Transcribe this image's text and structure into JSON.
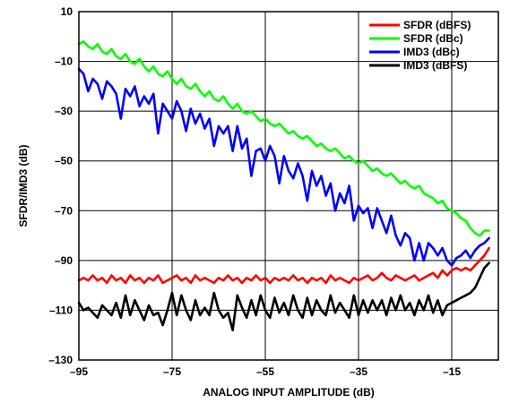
{
  "chart_data": {
    "type": "line",
    "title": "",
    "xlabel": "ANALOG INPUT AMPLITUDE (dB)",
    "ylabel": "SFDR/IMD3 (dB)",
    "xlim": [
      -95,
      -5
    ],
    "ylim": [
      -130,
      10
    ],
    "xticks": [
      -95,
      -75,
      -55,
      -35,
      -15
    ],
    "xtick_labels": [
      "–95",
      "–75",
      "–55",
      "–35",
      "–15"
    ],
    "yticks": [
      10,
      -10,
      -30,
      -50,
      -70,
      -90,
      -110,
      -130
    ],
    "ytick_labels": [
      "10",
      "–10",
      "–30",
      "–50",
      "–70",
      "–90",
      "–110",
      "–130"
    ],
    "grid": true,
    "legend_position": "top-right",
    "series": [
      {
        "name": "SFDR (dBFS)",
        "color": "#ff0000",
        "x": [
          -95,
          -94,
          -93,
          -92,
          -91,
          -90,
          -89,
          -88,
          -87,
          -86,
          -85,
          -84,
          -83,
          -82,
          -81,
          -80,
          -79,
          -78,
          -77,
          -76,
          -75,
          -74,
          -73,
          -72,
          -71,
          -70,
          -69,
          -68,
          -67,
          -66,
          -65,
          -64,
          -63,
          -62,
          -61,
          -60,
          -59,
          -58,
          -57,
          -56,
          -55,
          -54,
          -53,
          -52,
          -51,
          -50,
          -49,
          -48,
          -47,
          -46,
          -45,
          -44,
          -43,
          -42,
          -41,
          -40,
          -39,
          -38,
          -37,
          -36,
          -35,
          -34,
          -33,
          -32,
          -31,
          -30,
          -29,
          -28,
          -27,
          -26,
          -25,
          -24,
          -23,
          -22,
          -21,
          -20,
          -19,
          -18,
          -17,
          -16,
          -15,
          -14,
          -13,
          -12,
          -11,
          -10,
          -9,
          -8,
          -7
        ],
        "y": [
          -98,
          -97,
          -98,
          -96,
          -98,
          -97,
          -99,
          -96,
          -98,
          -97,
          -99,
          -96,
          -98,
          -97,
          -99,
          -97,
          -98,
          -96,
          -99,
          -98,
          -97,
          -96,
          -98,
          -97,
          -99,
          -96,
          -98,
          -97,
          -98,
          -99,
          -97,
          -98,
          -96,
          -98,
          -97,
          -99,
          -97,
          -98,
          -96,
          -98,
          -97,
          -99,
          -97,
          -98,
          -97,
          -98,
          -96,
          -98,
          -97,
          -99,
          -97,
          -98,
          -97,
          -99,
          -96,
          -98,
          -97,
          -98,
          -99,
          -97,
          -98,
          -97,
          -96,
          -98,
          -97,
          -95,
          -97,
          -98,
          -96,
          -97,
          -98,
          -97,
          -96,
          -98,
          -97,
          -96,
          -95,
          -97,
          -94,
          -96,
          -94,
          -93,
          -94,
          -93,
          -94,
          -92,
          -90,
          -88,
          -85
        ]
      },
      {
        "name": "SFDR (dBc)",
        "color": "#00ff00",
        "x": [
          -95,
          -94,
          -93,
          -92,
          -91,
          -90,
          -89,
          -88,
          -87,
          -86,
          -85,
          -84,
          -83,
          -82,
          -81,
          -80,
          -79,
          -78,
          -77,
          -76,
          -75,
          -74,
          -73,
          -72,
          -71,
          -70,
          -69,
          -68,
          -67,
          -66,
          -65,
          -64,
          -63,
          -62,
          -61,
          -60,
          -59,
          -58,
          -57,
          -56,
          -55,
          -54,
          -53,
          -52,
          -51,
          -50,
          -49,
          -48,
          -47,
          -46,
          -45,
          -44,
          -43,
          -42,
          -41,
          -40,
          -39,
          -38,
          -37,
          -36,
          -35,
          -34,
          -33,
          -32,
          -31,
          -30,
          -29,
          -28,
          -27,
          -26,
          -25,
          -24,
          -23,
          -22,
          -21,
          -20,
          -19,
          -18,
          -17,
          -16,
          -15,
          -14,
          -13,
          -12,
          -11,
          -10,
          -9,
          -8,
          -7
        ],
        "y": [
          -3,
          -2,
          -4,
          -5,
          -3,
          -6,
          -7,
          -5,
          -8,
          -9,
          -7,
          -10,
          -11,
          -9,
          -12,
          -14,
          -12,
          -15,
          -16,
          -14,
          -17,
          -19,
          -17,
          -20,
          -21,
          -19,
          -22,
          -24,
          -22,
          -25,
          -26,
          -24,
          -27,
          -29,
          -27,
          -30,
          -31,
          -30,
          -32,
          -34,
          -33,
          -35,
          -36,
          -35,
          -37,
          -39,
          -38,
          -40,
          -41,
          -40,
          -42,
          -44,
          -43,
          -45,
          -46,
          -45,
          -47,
          -49,
          -48,
          -50,
          -51,
          -50,
          -52,
          -54,
          -53,
          -55,
          -56,
          -55,
          -57,
          -59,
          -58,
          -60,
          -61,
          -60,
          -63,
          -64,
          -65,
          -67,
          -66,
          -69,
          -70,
          -71,
          -73,
          -74,
          -77,
          -79,
          -80,
          -78,
          -78
        ]
      },
      {
        "name": "IMD3 (dBc)",
        "color": "#0000ff",
        "x": [
          -95,
          -94,
          -93,
          -92,
          -91,
          -90,
          -89,
          -88,
          -87,
          -86,
          -85,
          -84,
          -83,
          -82,
          -81,
          -80,
          -79,
          -78,
          -77,
          -76,
          -75,
          -74,
          -73,
          -72,
          -71,
          -70,
          -69,
          -68,
          -67,
          -66,
          -65,
          -64,
          -63,
          -62,
          -61,
          -60,
          -59,
          -58,
          -57,
          -56,
          -55,
          -54,
          -53,
          -52,
          -51,
          -50,
          -49,
          -48,
          -47,
          -46,
          -45,
          -44,
          -43,
          -42,
          -41,
          -40,
          -39,
          -38,
          -37,
          -36,
          -35,
          -34,
          -33,
          -32,
          -31,
          -30,
          -29,
          -28,
          -27,
          -26,
          -25,
          -24,
          -23,
          -22,
          -21,
          -20,
          -19,
          -18,
          -17,
          -16,
          -15,
          -14,
          -13,
          -12,
          -11,
          -10,
          -9,
          -8,
          -7
        ],
        "y": [
          -13,
          -15,
          -22,
          -17,
          -19,
          -25,
          -18,
          -20,
          -23,
          -33,
          -21,
          -24,
          -20,
          -28,
          -24,
          -27,
          -23,
          -39,
          -27,
          -30,
          -33,
          -26,
          -30,
          -38,
          -29,
          -35,
          -31,
          -37,
          -33,
          -44,
          -36,
          -39,
          -36,
          -46,
          -36,
          -45,
          -41,
          -56,
          -46,
          -45,
          -50,
          -44,
          -48,
          -59,
          -48,
          -54,
          -57,
          -51,
          -56,
          -66,
          -54,
          -60,
          -56,
          -64,
          -59,
          -70,
          -63,
          -67,
          -60,
          -74,
          -68,
          -71,
          -69,
          -77,
          -69,
          -74,
          -79,
          -72,
          -80,
          -84,
          -79,
          -81,
          -90,
          -83,
          -90,
          -83,
          -85,
          -88,
          -85,
          -90,
          -92,
          -89,
          -88,
          -86,
          -89,
          -86,
          -84,
          -83,
          -81
        ]
      },
      {
        "name": "IMD3 (dBFS)",
        "color": "#000000",
        "x": [
          -95,
          -94,
          -93,
          -92,
          -91,
          -90,
          -89,
          -88,
          -87,
          -86,
          -85,
          -84,
          -83,
          -82,
          -81,
          -80,
          -79,
          -78,
          -77,
          -76,
          -75,
          -74,
          -73,
          -72,
          -71,
          -70,
          -69,
          -68,
          -67,
          -66,
          -65,
          -64,
          -63,
          -62,
          -61,
          -60,
          -59,
          -58,
          -57,
          -56,
          -55,
          -54,
          -53,
          -52,
          -51,
          -50,
          -49,
          -48,
          -47,
          -46,
          -45,
          -44,
          -43,
          -42,
          -41,
          -40,
          -39,
          -38,
          -37,
          -36,
          -35,
          -34,
          -33,
          -32,
          -31,
          -30,
          -29,
          -28,
          -27,
          -26,
          -25,
          -24,
          -23,
          -22,
          -21,
          -20,
          -19,
          -18,
          -17,
          -16,
          -15,
          -14,
          -13,
          -12,
          -11,
          -10,
          -9,
          -8,
          -7
        ],
        "y": [
          -107,
          -110,
          -109,
          -111,
          -113,
          -108,
          -110,
          -112,
          -107,
          -113,
          -104,
          -112,
          -106,
          -110,
          -114,
          -108,
          -112,
          -111,
          -116,
          -110,
          -103,
          -112,
          -104,
          -110,
          -114,
          -106,
          -112,
          -109,
          -112,
          -103,
          -110,
          -113,
          -111,
          -118,
          -104,
          -109,
          -113,
          -106,
          -112,
          -104,
          -110,
          -113,
          -105,
          -111,
          -107,
          -112,
          -104,
          -110,
          -113,
          -105,
          -112,
          -106,
          -110,
          -112,
          -104,
          -111,
          -107,
          -110,
          -113,
          -104,
          -112,
          -106,
          -111,
          -106,
          -110,
          -106,
          -112,
          -105,
          -110,
          -104,
          -110,
          -107,
          -112,
          -106,
          -110,
          -104,
          -111,
          -106,
          -112,
          -108,
          -107,
          -106,
          -105,
          -104,
          -103,
          -101,
          -97,
          -93,
          -91
        ]
      }
    ]
  }
}
